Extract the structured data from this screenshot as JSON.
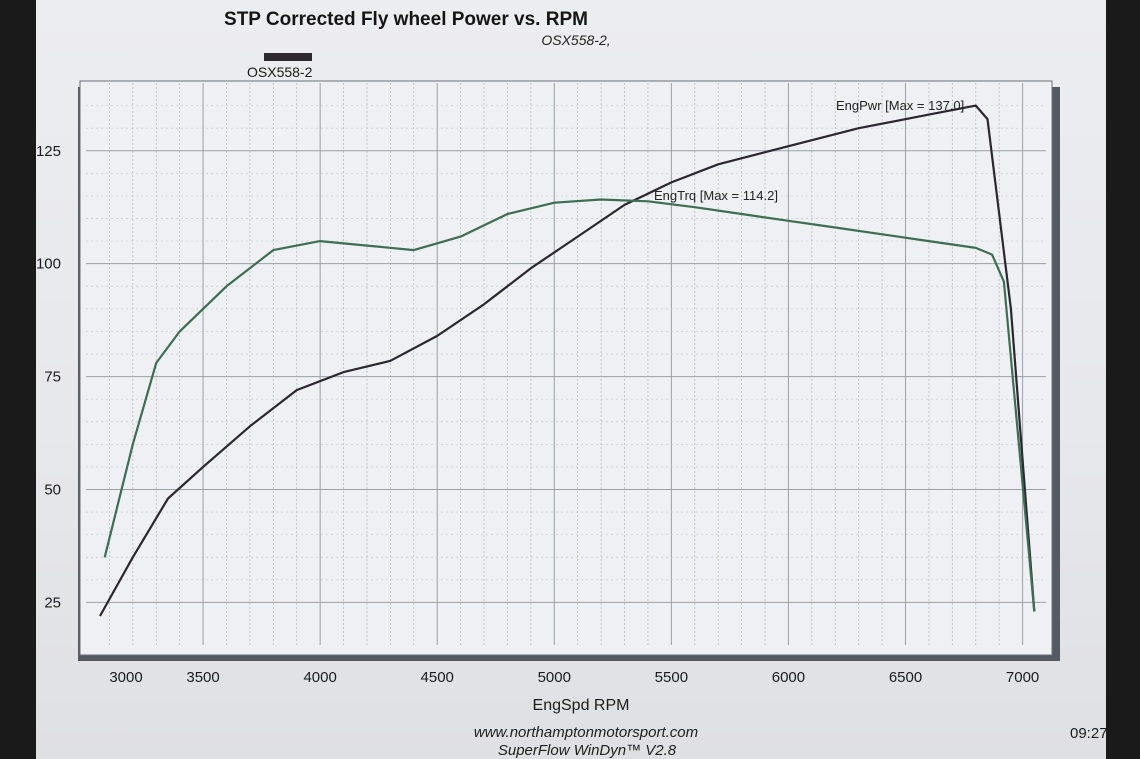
{
  "chart_data": {
    "type": "line",
    "title": "STP Corrected Fly wheel Power vs. RPM",
    "subtitle": "OSX558-2,",
    "legend": [
      {
        "name": "OSX558-2",
        "color": "#2e2a30"
      }
    ],
    "xlabel": "EngSpd  RPM",
    "ylabel": "",
    "xlim": [
      3000,
      7100
    ],
    "ylim": [
      20,
      140
    ],
    "xticks": [
      3000,
      3500,
      4000,
      4500,
      5000,
      5500,
      6000,
      6500,
      7000
    ],
    "yticks": [
      25,
      50,
      75,
      100,
      125
    ],
    "grid": true,
    "series": [
      {
        "name": "EngPwr",
        "color": "#2c2630",
        "annotation": "EngPwr [Max = 137.0]",
        "x": [
          3060,
          3200,
          3350,
          3500,
          3700,
          3900,
          4100,
          4300,
          4500,
          4700,
          4900,
          5100,
          5300,
          5500,
          5700,
          6000,
          6300,
          6600,
          6800,
          6850,
          6950,
          7050
        ],
        "y": [
          22,
          35,
          48,
          55,
          64,
          72,
          76,
          78.5,
          84,
          91,
          99,
          106,
          113,
          118,
          122,
          126,
          130,
          133,
          135,
          132,
          90,
          23
        ]
      },
      {
        "name": "EngTrq",
        "color": "#3d6e52",
        "annotation": "EngTrq [Max = 114.2]",
        "x": [
          3080,
          3200,
          3300,
          3400,
          3600,
          3800,
          4000,
          4200,
          4400,
          4600,
          4800,
          5000,
          5200,
          5400,
          5600,
          5800,
          6000,
          6200,
          6400,
          6600,
          6800,
          6870,
          6920,
          7050
        ],
        "y": [
          35,
          60,
          78,
          85,
          95,
          103,
          105,
          104,
          103,
          106,
          111,
          113.5,
          114.2,
          113.8,
          112.5,
          111,
          109.5,
          108,
          106.5,
          105,
          103.5,
          102,
          96,
          23
        ]
      }
    ]
  },
  "footer": {
    "url": "www.northamptonmotorsport.com",
    "software": "SuperFlow WinDyn™ V2.8",
    "time": "09:27"
  }
}
